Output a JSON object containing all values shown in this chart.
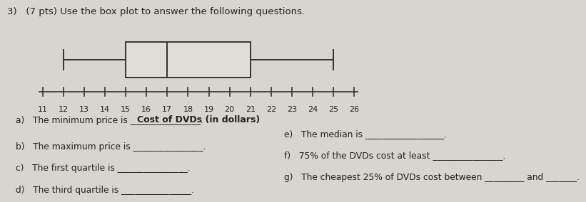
{
  "title_line1": "3)   (7 pts) Use the box plot to answer the following questions.",
  "xlabel": "Cost of DVDs (in dollars)",
  "x_min": 11,
  "x_max": 26,
  "whisker_low": 12,
  "q1": 15,
  "median": 17,
  "q3": 21,
  "whisker_high": 25,
  "box_color": "#e0dcd6",
  "box_edge_color": "#333333",
  "line_color": "#333333",
  "text_color": "#222222",
  "bg_color": "#d8d4ce",
  "questions_left": [
    "a)   The minimum price is ________________.",
    "b)   The maximum price is ________________.",
    "c)   The first quartile is ________________.",
    "d)   The third quartile is ________________."
  ],
  "questions_right_e": "e)   The median is __________________.",
  "questions_right_f": "f)   75% of the DVDs cost at least ________________.",
  "questions_right_g": "g)   The cheapest 25% of DVDs cost between _________ and _______.",
  "title_fontsize": 9.5,
  "label_fontsize": 9,
  "question_fontsize": 8.8
}
